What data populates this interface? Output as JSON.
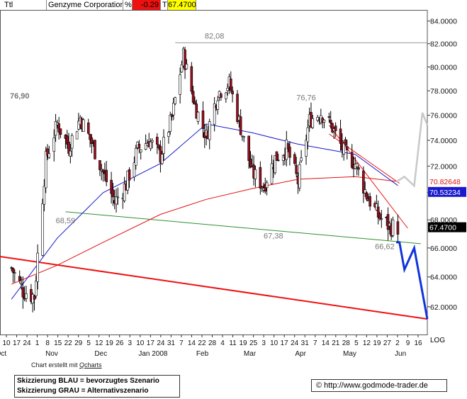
{
  "header": {
    "ticker": "Ttl",
    "name": "Genzyme Corporation",
    "change_label": "%",
    "change": "-0.29",
    "last_label": "T",
    "last": "67.4700"
  },
  "footer": {
    "credit_prefix": "Chart erstellt mit",
    "credit_link": "Qcharts",
    "legend_blue": "Skizzierung BLAU = bevorzugtes Szenario",
    "legend_grey": "Skizzierung GRAU = Alternativszenario",
    "source_symbol": "©",
    "source": "http://www.godmode-trader.de",
    "scale": "LOG"
  },
  "colors": {
    "candle_up": "#ffffff",
    "candle_down": "#9b1020",
    "ma_red": "#e01010",
    "ma_blue": "#1a1acd",
    "support_green": "#2f8f2f",
    "trend_red": "#ee1111",
    "scenario_blue": "#1133dd",
    "scenario_grey": "#c8c8c8",
    "last_badge": "#000000",
    "blue_badge": "#1a1acd",
    "header_red": "#ee1111",
    "header_yellow": "#ffff00"
  },
  "chart_data": {
    "type": "candlestick",
    "title": "Genzyme Corporation",
    "scale": "log",
    "ylim": [
      60.2,
      85.0
    ],
    "y_ticks": [
      "84.0000",
      "82.0000",
      "80.0000",
      "78.0000",
      "76.0000",
      "74.0000",
      "72.0000",
      "70.0000",
      "68.0000",
      "66.0000",
      "64.0000",
      "62.0000"
    ],
    "x_day_labels": [
      "10",
      "17",
      "24",
      "1",
      "8",
      "15",
      "22",
      "29",
      "5",
      "12",
      "19",
      "26",
      "3",
      "10",
      "17",
      "24",
      "31",
      "7",
      "14",
      "22",
      "28",
      "4",
      "11",
      "19",
      "25",
      "3",
      "10",
      "17",
      "24",
      "31",
      "7",
      "14",
      "21",
      "28",
      "5",
      "12",
      "19",
      "27",
      "2",
      "9",
      "16"
    ],
    "x_month_labels": [
      "Oct",
      "Nov",
      "Dec",
      "Jan 2008",
      "Feb",
      "Mar",
      "Apr",
      "May",
      "Jun"
    ],
    "annotations": [
      "76,90",
      "68,59",
      "82,08",
      "76,76",
      "67,38",
      "66,62"
    ],
    "price_labels": {
      "last": "67.4700",
      "blue_ma": "70.53234",
      "red_ma_partial": "70.82648"
    },
    "key_levels": {
      "high": 82.08,
      "left_high": 76.9,
      "nov_low": 68.59,
      "apr_high": 76.76,
      "mar_low": 67.38,
      "recent_low": 66.62
    },
    "series": [
      {
        "name": "Price (Close)",
        "x": [
          "2007-10-10",
          "2007-10-17",
          "2007-10-24",
          "2007-10-31",
          "2007-11-07",
          "2007-11-14",
          "2007-11-21",
          "2007-11-28",
          "2007-12-05",
          "2007-12-12",
          "2007-12-19",
          "2007-12-26",
          "2008-01-02",
          "2008-01-09",
          "2008-01-16",
          "2008-01-23",
          "2008-01-30",
          "2008-02-06",
          "2008-02-13",
          "2008-02-20",
          "2008-02-27",
          "2008-03-05",
          "2008-03-12",
          "2008-03-19",
          "2008-03-26",
          "2008-04-02",
          "2008-04-09",
          "2008-04-16",
          "2008-04-23",
          "2008-04-30",
          "2008-05-07",
          "2008-05-14",
          "2008-05-21",
          "2008-05-28",
          "2008-06-02"
        ],
        "values": [
          64.6,
          63.1,
          62.7,
          72.5,
          75.3,
          73.5,
          75.8,
          73.8,
          71.5,
          69.3,
          70.6,
          73.3,
          74.0,
          72.8,
          75.8,
          81.0,
          76.8,
          74.3,
          77.8,
          78.6,
          75.0,
          71.5,
          70.5,
          72.6,
          73.4,
          70.8,
          75.6,
          76.2,
          75.0,
          73.1,
          72.2,
          69.8,
          68.3,
          67.5,
          67.47
        ]
      },
      {
        "name": "MA (blue)",
        "x": [
          "2007-10-10",
          "2007-11-07",
          "2007-12-05",
          "2008-01-09",
          "2008-02-06",
          "2008-03-05",
          "2008-04-02",
          "2008-05-07",
          "2008-06-02"
        ],
        "values": [
          62.5,
          66.7,
          70.0,
          72.2,
          75.3,
          74.6,
          73.7,
          72.9,
          70.53
        ]
      },
      {
        "name": "MA (red)",
        "x": [
          "2007-10-10",
          "2007-11-07",
          "2007-12-05",
          "2008-01-09",
          "2008-02-06",
          "2008-03-05",
          "2008-04-02",
          "2008-05-07",
          "2008-06-02"
        ],
        "values": [
          63.5,
          64.8,
          66.4,
          68.4,
          69.5,
          70.3,
          71.0,
          71.2,
          70.83
        ]
      }
    ],
    "lines": [
      {
        "name": "Support (green)",
        "from": [
          "2007-11-12",
          68.59
        ],
        "to": [
          "2008-06-16",
          66.3
        ]
      },
      {
        "name": "Long trend (red)",
        "from": [
          "2007-10-03",
          65.4
        ],
        "to": [
          "2008-06-20",
          61.2
        ]
      },
      {
        "name": "Downtrend 1",
        "from": [
          "2008-04-21",
          75.2
        ],
        "to": [
          "2008-06-08",
          67.4
        ]
      },
      {
        "name": "Downtrend 2",
        "from": [
          "2008-04-21",
          74.5
        ],
        "to": [
          "2008-06-03",
          70.7
        ]
      },
      {
        "name": "Scenario BLAU",
        "points": [
          [
            "2008-06-01",
            66.4
          ],
          [
            "2008-06-03",
            66.4
          ],
          [
            "2008-06-06",
            64.5
          ],
          [
            "2008-06-12",
            66.0
          ],
          [
            "2008-06-20",
            61.2
          ]
        ]
      },
      {
        "name": "Scenario GRAU",
        "points": [
          [
            "2008-06-01",
            70.8
          ],
          [
            "2008-06-06",
            71.2
          ],
          [
            "2008-06-12",
            70.5
          ],
          [
            "2008-06-17",
            76.2
          ],
          [
            "2008-06-20",
            75.2
          ]
        ]
      }
    ]
  }
}
